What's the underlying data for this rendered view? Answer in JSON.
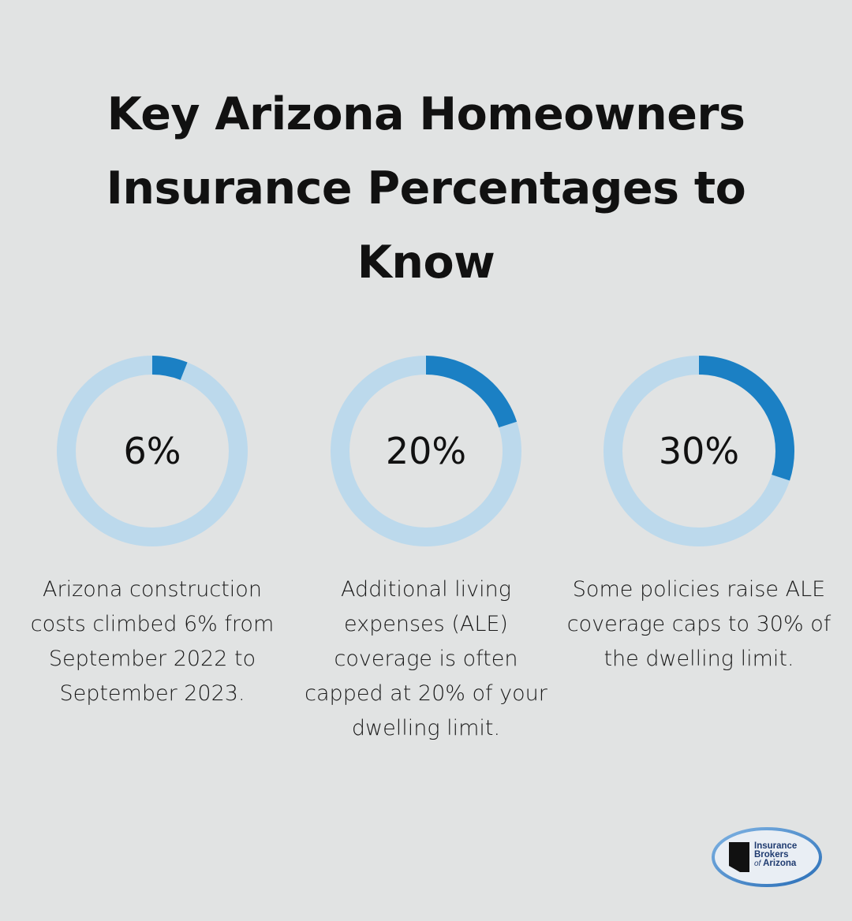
{
  "title": "Key Arizona Homeowners Insurance Percentages to Know",
  "colors": {
    "background": "#e1e3e3",
    "ring_track": "#bcd9ec",
    "ring_fill": "#1b80c4",
    "text": "#111111"
  },
  "chart_data": [
    {
      "type": "pie",
      "label": "6%",
      "value": 6,
      "max": 100,
      "description": "Arizona construction costs climbed 6% from September 2022 to September 2023."
    },
    {
      "type": "pie",
      "label": "20%",
      "value": 20,
      "max": 100,
      "description": "Additional living expenses (ALE) coverage is often capped at 20% of your dwelling limit."
    },
    {
      "type": "pie",
      "label": "30%",
      "value": 30,
      "max": 100,
      "description": "Some policies raise ALE coverage caps to 30% of the dwelling limit."
    }
  ],
  "logo": {
    "line1": "Insurance",
    "line2": "Brokers",
    "line3_of": "of",
    "line3": "Arizona"
  }
}
